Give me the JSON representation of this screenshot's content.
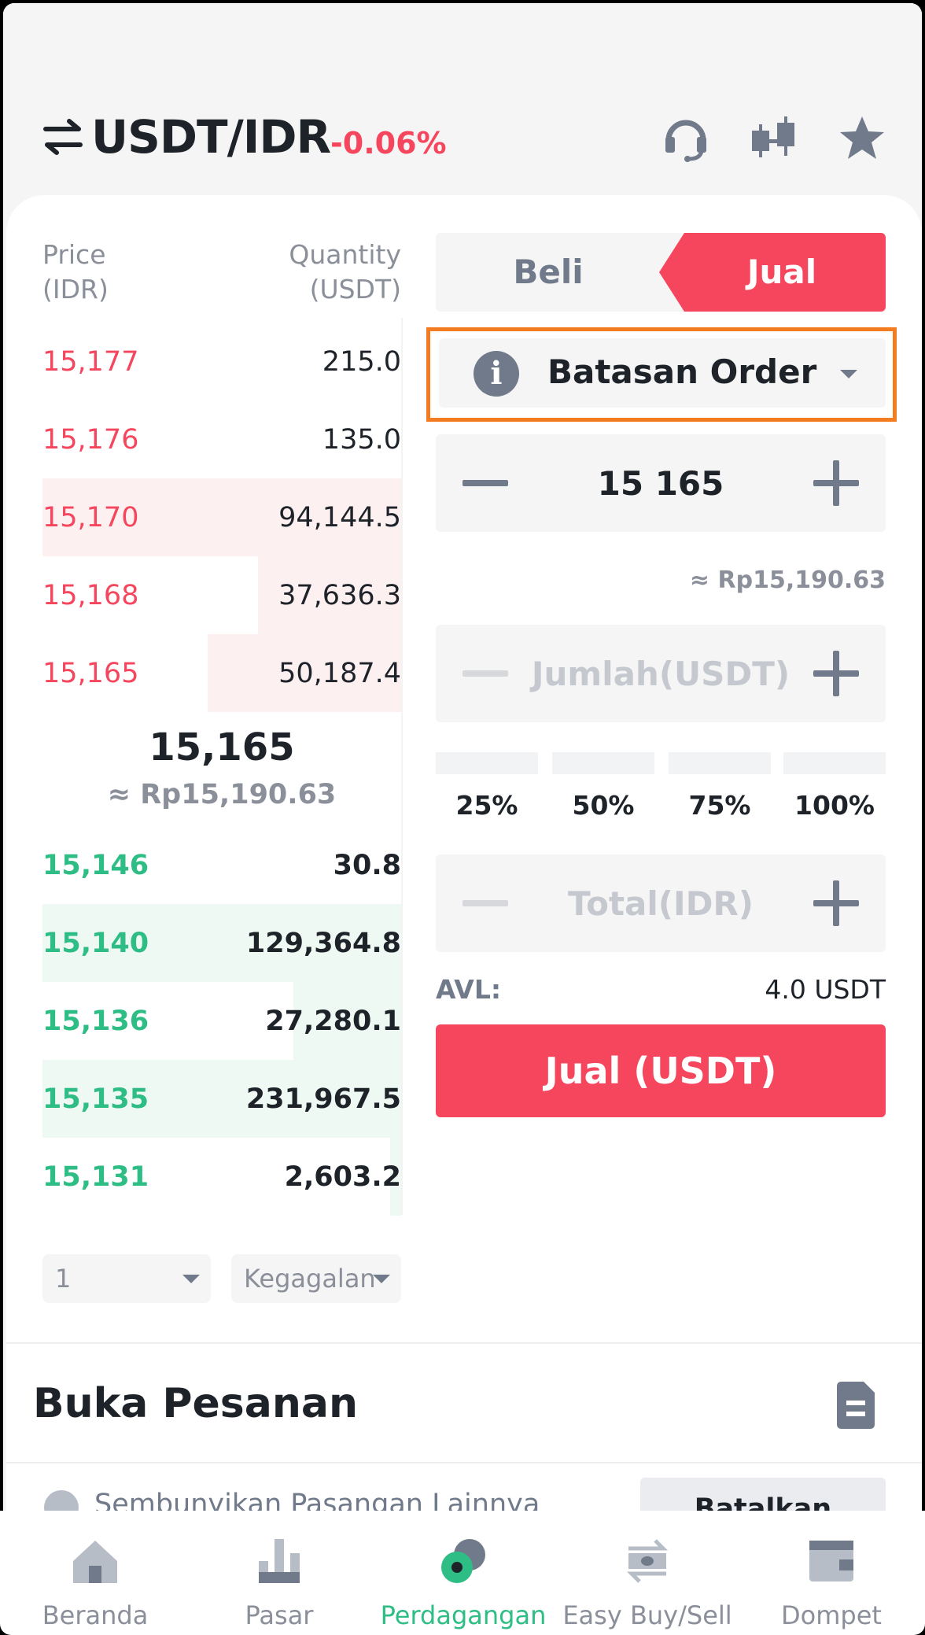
{
  "header": {
    "pair": "USDT/IDR",
    "change": "-0.06%"
  },
  "orderbook": {
    "price_header": [
      "Price",
      "(IDR)"
    ],
    "qty_header": [
      "Quantity",
      "(USDT)"
    ],
    "asks": [
      {
        "price": "15,177",
        "qty": "215.0",
        "depth": 0
      },
      {
        "price": "15,176",
        "qty": "135.0",
        "depth": 0
      },
      {
        "price": "15,170",
        "qty": "94,144.5",
        "depth": 1.0
      },
      {
        "price": "15,168",
        "qty": "37,636.3",
        "depth": 0.4
      },
      {
        "price": "15,165",
        "qty": "50,187.4",
        "depth": 0.54
      }
    ],
    "mid_price": "15,165",
    "mid_approx": "≈ Rp15,190.63",
    "bids": [
      {
        "price": "15,146",
        "qty": "30.8",
        "depth": 0
      },
      {
        "price": "15,140",
        "qty": "129,364.8",
        "depth": 1.0
      },
      {
        "price": "15,136",
        "qty": "27,280.1",
        "depth": 0.3
      },
      {
        "price": "15,135",
        "qty": "231,967.5",
        "depth": 1.0
      },
      {
        "price": "15,131",
        "qty": "2,603.2",
        "depth": 0.03
      }
    ],
    "precision": "1",
    "mode": "Kegagalan"
  },
  "trade": {
    "tab_buy": "Beli",
    "tab_sell": "Jual",
    "order_type": "Batasan Order",
    "price_value": "15 165",
    "price_approx": "≈ Rp15,190.63",
    "amount_placeholder": "Jumlah(USDT)",
    "percentages": [
      "25%",
      "50%",
      "75%",
      "100%"
    ],
    "total_placeholder": "Total(IDR)",
    "avl_label": "AVL:",
    "avl_value": "4.0 USDT",
    "submit": "Jual (USDT)"
  },
  "orders": {
    "title": "Buka Pesanan",
    "hide_label": "Sembunyikan Pasangan Lainnya",
    "cancel_all": "Batalkan semua"
  },
  "nav": [
    {
      "label": "Beranda",
      "icon": "home-icon"
    },
    {
      "label": "Pasar",
      "icon": "market-icon"
    },
    {
      "label": "Perdagangan",
      "icon": "trade-icon"
    },
    {
      "label": "Easy Buy/Sell",
      "icon": "swap-icon"
    },
    {
      "label": "Dompet",
      "icon": "wallet-icon"
    }
  ],
  "colors": {
    "sell": "#f6465d",
    "buy": "#2ebd85",
    "highlight": "#f47c20"
  }
}
